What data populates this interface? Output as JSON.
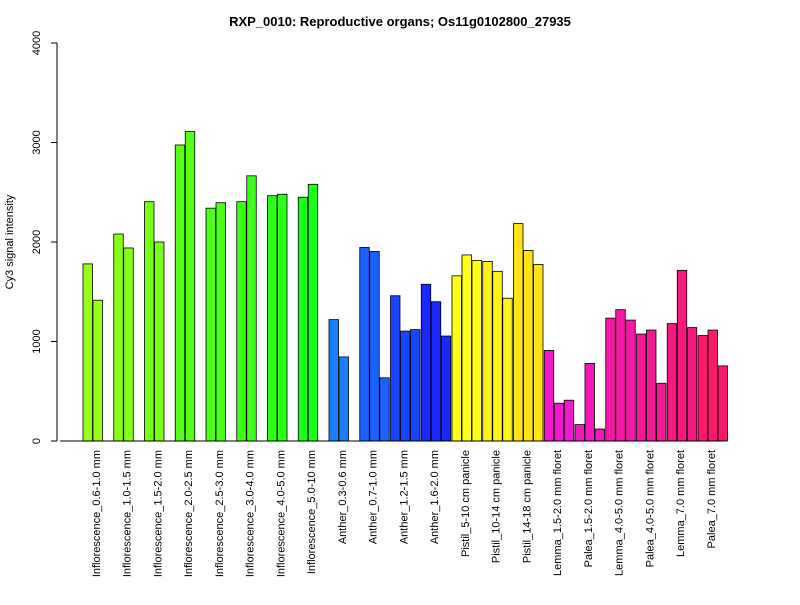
{
  "chart_data": {
    "type": "bar",
    "title": "RXP_0010: Reproductive organs; Os11g0102800_27935",
    "xlabel": "",
    "ylabel": "Cy3 signal intensity",
    "ylim": [
      0,
      4000
    ],
    "yticks": [
      0,
      1000,
      2000,
      3000,
      4000
    ],
    "categories": [
      "Inflorescence_0.6-1.0 mm",
      "Inflorescence_1.0-1.5 mm",
      "Inflorescence_1.5-2.0 mm",
      "Inflorescence_2.0-2.5 mm",
      "Inflorescence_2.5-3.0 mm",
      "Inflorescence_3.0-4.0 mm",
      "Inflorescence_4.0-5.0 mm",
      "Inflorescence_5.0-10 mm",
      "Anther_0.3-0.6 mm",
      "Anther_0.7-1.0 mm",
      "Anther_1.2-1.5 mm",
      "Anther_1.6-2.0 mm",
      "Pistil_5-10 cm panicle",
      "Pistil_10-14 cm panicle",
      "Pistil_14-18 cm panicle",
      "Lemma_1.5-2.0 mm floret",
      "Palea_1.5-2.0 mm floret",
      "Lemma_4.0-5.0 mm floret",
      "Palea_4.0-5.0 mm floret",
      "Lemma_7.0 mm floret",
      "Palea_7.0 mm floret"
    ],
    "groups": [
      {
        "color": "#99ff1a",
        "values": [
          1780,
          1415
        ]
      },
      {
        "color": "#88ff1a",
        "values": [
          2080,
          1940
        ]
      },
      {
        "color": "#77ff1a",
        "values": [
          2405,
          2000
        ]
      },
      {
        "color": "#55ff1a",
        "values": [
          2975,
          3110
        ]
      },
      {
        "color": "#4cff1a",
        "values": [
          2340,
          2395
        ]
      },
      {
        "color": "#3cff1a",
        "values": [
          2405,
          2665
        ]
      },
      {
        "color": "#2bff1a",
        "values": [
          2465,
          2480
        ]
      },
      {
        "color": "#1aff1a",
        "values": [
          2450,
          2580
        ]
      },
      {
        "color": "#1a7fff",
        "values": [
          1220,
          845
        ]
      },
      {
        "color": "#1a62ff",
        "values": [
          1945,
          1905,
          635
        ]
      },
      {
        "color": "#1a45ff",
        "values": [
          1460,
          1105,
          1120
        ]
      },
      {
        "color": "#1a28ff",
        "values": [
          1575,
          1400,
          1055
        ]
      },
      {
        "color": "#ffff1a",
        "values": [
          1660,
          1870,
          1815
        ]
      },
      {
        "color": "#fff11a",
        "values": [
          1805,
          1705,
          1435
        ]
      },
      {
        "color": "#ffe31a",
        "values": [
          2185,
          1915,
          1775
        ]
      },
      {
        "color": "#ee1acc",
        "values": [
          910,
          380,
          410
        ]
      },
      {
        "color": "#f01abb",
        "values": [
          165,
          780,
          120
        ]
      },
      {
        "color": "#f21aa6",
        "values": [
          1235,
          1320,
          1215
        ]
      },
      {
        "color": "#f41a96",
        "values": [
          1075,
          1115,
          580
        ]
      },
      {
        "color": "#f61a80",
        "values": [
          1180,
          1715,
          1140
        ]
      },
      {
        "color": "#f81a6a",
        "values": [
          1060,
          1115,
          755
        ]
      }
    ]
  }
}
